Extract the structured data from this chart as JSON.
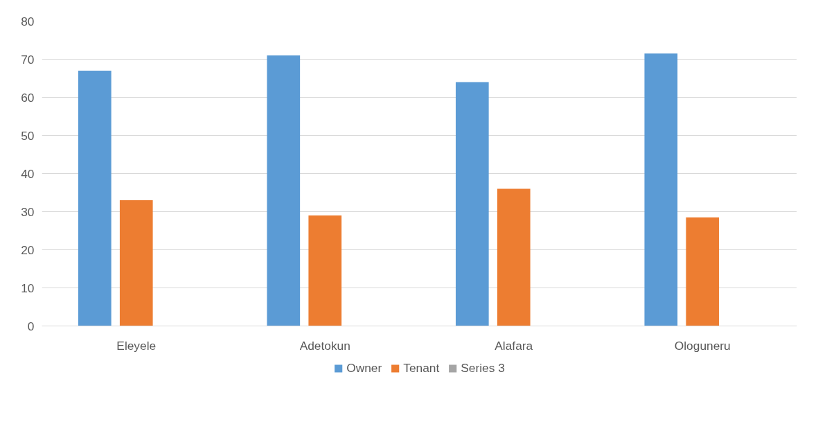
{
  "chart_data": {
    "type": "bar",
    "categories": [
      "Eleyele",
      "Adetokun",
      "Alafara",
      "Ologuneru"
    ],
    "series": [
      {
        "name": "Owner",
        "color": "#5b9bd5",
        "values": [
          67,
          71,
          64,
          71.5
        ]
      },
      {
        "name": "Tenant",
        "color": "#ed7d31",
        "values": [
          33,
          29,
          36,
          28.5
        ]
      },
      {
        "name": "Series 3",
        "color": "#a5a5a5",
        "values": [
          null,
          null,
          null,
          null
        ]
      }
    ],
    "ylim": [
      0,
      80
    ],
    "yticks": [
      0,
      10,
      20,
      30,
      40,
      50,
      60,
      70,
      80
    ],
    "grid": "y",
    "legend": "bottom"
  }
}
